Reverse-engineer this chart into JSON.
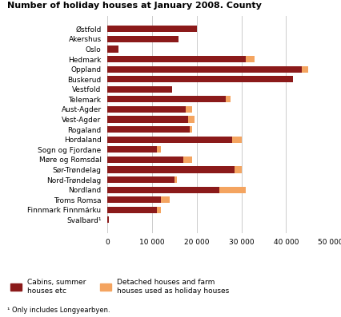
{
  "title": "Number of holiday houses at January 2008. County",
  "categories": [
    "Østfold",
    "Akershus",
    "Oslo",
    "Hedmark",
    "Oppland",
    "Buskerud",
    "Vestfold",
    "Telemark",
    "Aust-Agder",
    "Vest-Agder",
    "Rogaland",
    "Hordaland",
    "Sogn og Fjordane",
    "Møre og Romsdal",
    "Sør-Trøndelag",
    "Nord-Trøndelag",
    "Nordland",
    "Troms Romsa",
    "Finnmark Finnmárku",
    "Svalbard¹"
  ],
  "cabins": [
    20000,
    16000,
    2500,
    31000,
    43500,
    41500,
    14500,
    26500,
    17500,
    18000,
    18500,
    28000,
    11000,
    17000,
    28500,
    15000,
    25000,
    12000,
    11000,
    300
  ],
  "detached": [
    0,
    0,
    0,
    2000,
    1500,
    0,
    0,
    1000,
    1500,
    1500,
    500,
    2000,
    1000,
    2000,
    1500,
    500,
    6000,
    2000,
    1000,
    0
  ],
  "cabin_color": "#8B1A1A",
  "detached_color": "#F4A460",
  "xlim": [
    0,
    50000
  ],
  "xticks": [
    0,
    10000,
    20000,
    30000,
    40000,
    50000
  ],
  "xticklabels": [
    "0",
    "10 000",
    "20 000",
    "30 000",
    "40 000",
    "50 000"
  ],
  "legend_cabin": "Cabins, summer\nhouses etc",
  "legend_detached": "Detached houses and farm\nhouses used as holiday houses",
  "footnote": "¹ Only includes Longyearbyen.",
  "bg_color": "#ffffff",
  "grid_color": "#cccccc"
}
